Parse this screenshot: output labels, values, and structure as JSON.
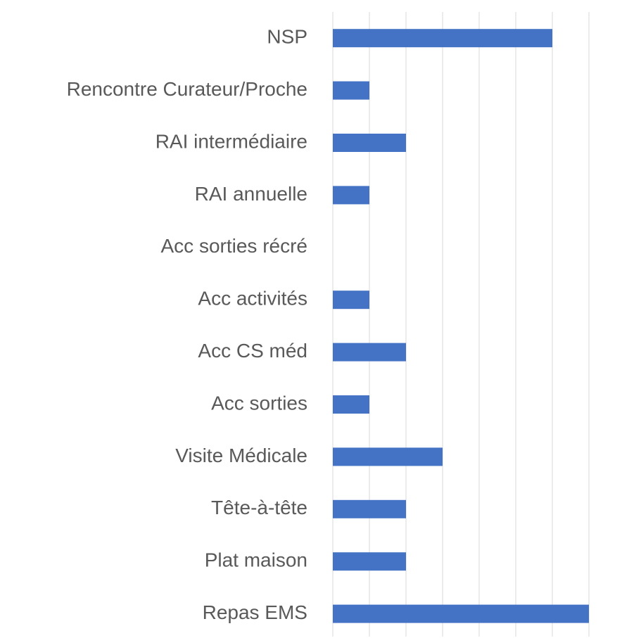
{
  "chart_data": {
    "type": "barh",
    "categories": [
      "NSP",
      "Rencontre Curateur/Proche",
      "RAI intermédiaire",
      "RAI annuelle",
      "Acc sorties récré",
      "Acc activités",
      "Acc CS méd",
      "Acc sorties",
      "Visite Médicale",
      "Tête-à-tête",
      "Plat maison",
      "Repas EMS"
    ],
    "values": [
      6,
      1,
      2,
      1,
      0,
      1,
      2,
      1,
      3,
      2,
      2,
      7
    ],
    "color": "#4472c4",
    "xlim": [
      0,
      7
    ],
    "xticks": [
      0,
      1,
      2,
      3,
      4,
      5,
      6,
      7
    ],
    "grid": true
  }
}
